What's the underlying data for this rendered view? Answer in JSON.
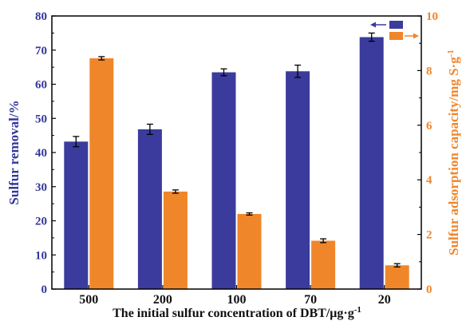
{
  "chart_data": {
    "type": "bar",
    "categories": [
      "500",
      "200",
      "100",
      "70",
      "20"
    ],
    "xlabel": "The initial sulfur concentration of DBT/μg·g",
    "xlabel_sup": "-1",
    "ylabel": "Sulfur removal/%",
    "ylabel_right": "Sulfur adsorption capacity/mg S·g",
    "ylabel_right_sup": "-1",
    "ylim": [
      0,
      80
    ],
    "y_ticks": [
      "0",
      "10",
      "20",
      "30",
      "40",
      "50",
      "60",
      "70",
      "80"
    ],
    "ylim_right": [
      0,
      10
    ],
    "y_right_ticks": [
      "0",
      "2",
      "4",
      "6",
      "8",
      "10"
    ],
    "legend": "top-right",
    "grid": false,
    "series": [
      {
        "axis": "left",
        "color": "#3a3b9c",
        "values": [
          43.2,
          46.8,
          63.5,
          63.8,
          73.8
        ],
        "errors": [
          1.5,
          1.5,
          1.0,
          1.8,
          1.2
        ]
      },
      {
        "axis": "right",
        "color": "#f0862a",
        "values": [
          8.45,
          3.57,
          2.75,
          1.77,
          0.87
        ],
        "errors": [
          0.06,
          0.06,
          0.04,
          0.07,
          0.06
        ]
      }
    ]
  }
}
